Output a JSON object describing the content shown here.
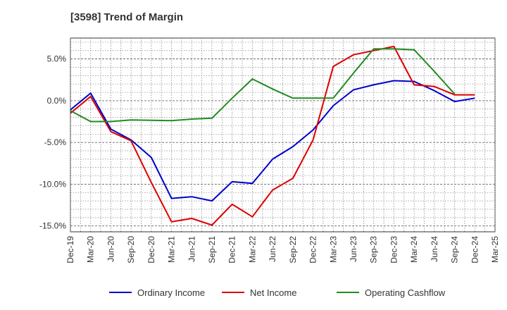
{
  "chart_data": {
    "type": "line",
    "title": "[3598]  Trend of Margin",
    "xlabel": "",
    "ylabel": "",
    "categories": [
      "Dec-19",
      "Mar-20",
      "Jun-20",
      "Sep-20",
      "Dec-20",
      "Mar-21",
      "Jun-21",
      "Sep-21",
      "Dec-21",
      "Mar-22",
      "Jun-22",
      "Sep-22",
      "Dec-22",
      "Mar-23",
      "Jun-23",
      "Sep-23",
      "Dec-23",
      "Mar-24",
      "Jun-24",
      "Sep-24",
      "Dec-24",
      "Mar-25"
    ],
    "ylim": [
      -15.7,
      7.5
    ],
    "yticks": [
      5.0,
      0.0,
      -5.0,
      -10.0,
      -15.0
    ],
    "ytick_labels": [
      "5.0%",
      "0.0%",
      "-5.0%",
      "-10.0%",
      "-15.0%"
    ],
    "grid": true,
    "legend_position": "bottom",
    "series": [
      {
        "name": "Ordinary Income",
        "color": "#0000cc",
        "values": [
          -1.1,
          0.9,
          -3.4,
          -4.7,
          -6.8,
          -11.7,
          -11.5,
          -12.0,
          -9.7,
          -9.9,
          -7.0,
          -5.5,
          -3.5,
          -0.6,
          1.3,
          1.9,
          2.4,
          2.3,
          1.2,
          -0.1,
          0.3,
          null
        ]
      },
      {
        "name": "Net Income",
        "color": "#dd0000",
        "values": [
          -1.5,
          0.5,
          -3.7,
          -4.8,
          -9.8,
          -14.5,
          -14.1,
          -14.9,
          -12.4,
          -13.9,
          -10.7,
          -9.3,
          -4.7,
          4.1,
          5.5,
          6.0,
          6.5,
          1.9,
          1.7,
          0.7,
          0.7,
          null
        ]
      },
      {
        "name": "Operating Cashflow",
        "color": "#228b22",
        "values": [
          -1.2,
          -2.5,
          -2.5,
          -2.3,
          -2.35,
          -2.4,
          -2.2,
          -2.1,
          0.3,
          2.6,
          1.4,
          0.3,
          0.3,
          0.3,
          3.3,
          6.2,
          6.2,
          6.1,
          3.5,
          0.8,
          null,
          null
        ]
      }
    ]
  }
}
